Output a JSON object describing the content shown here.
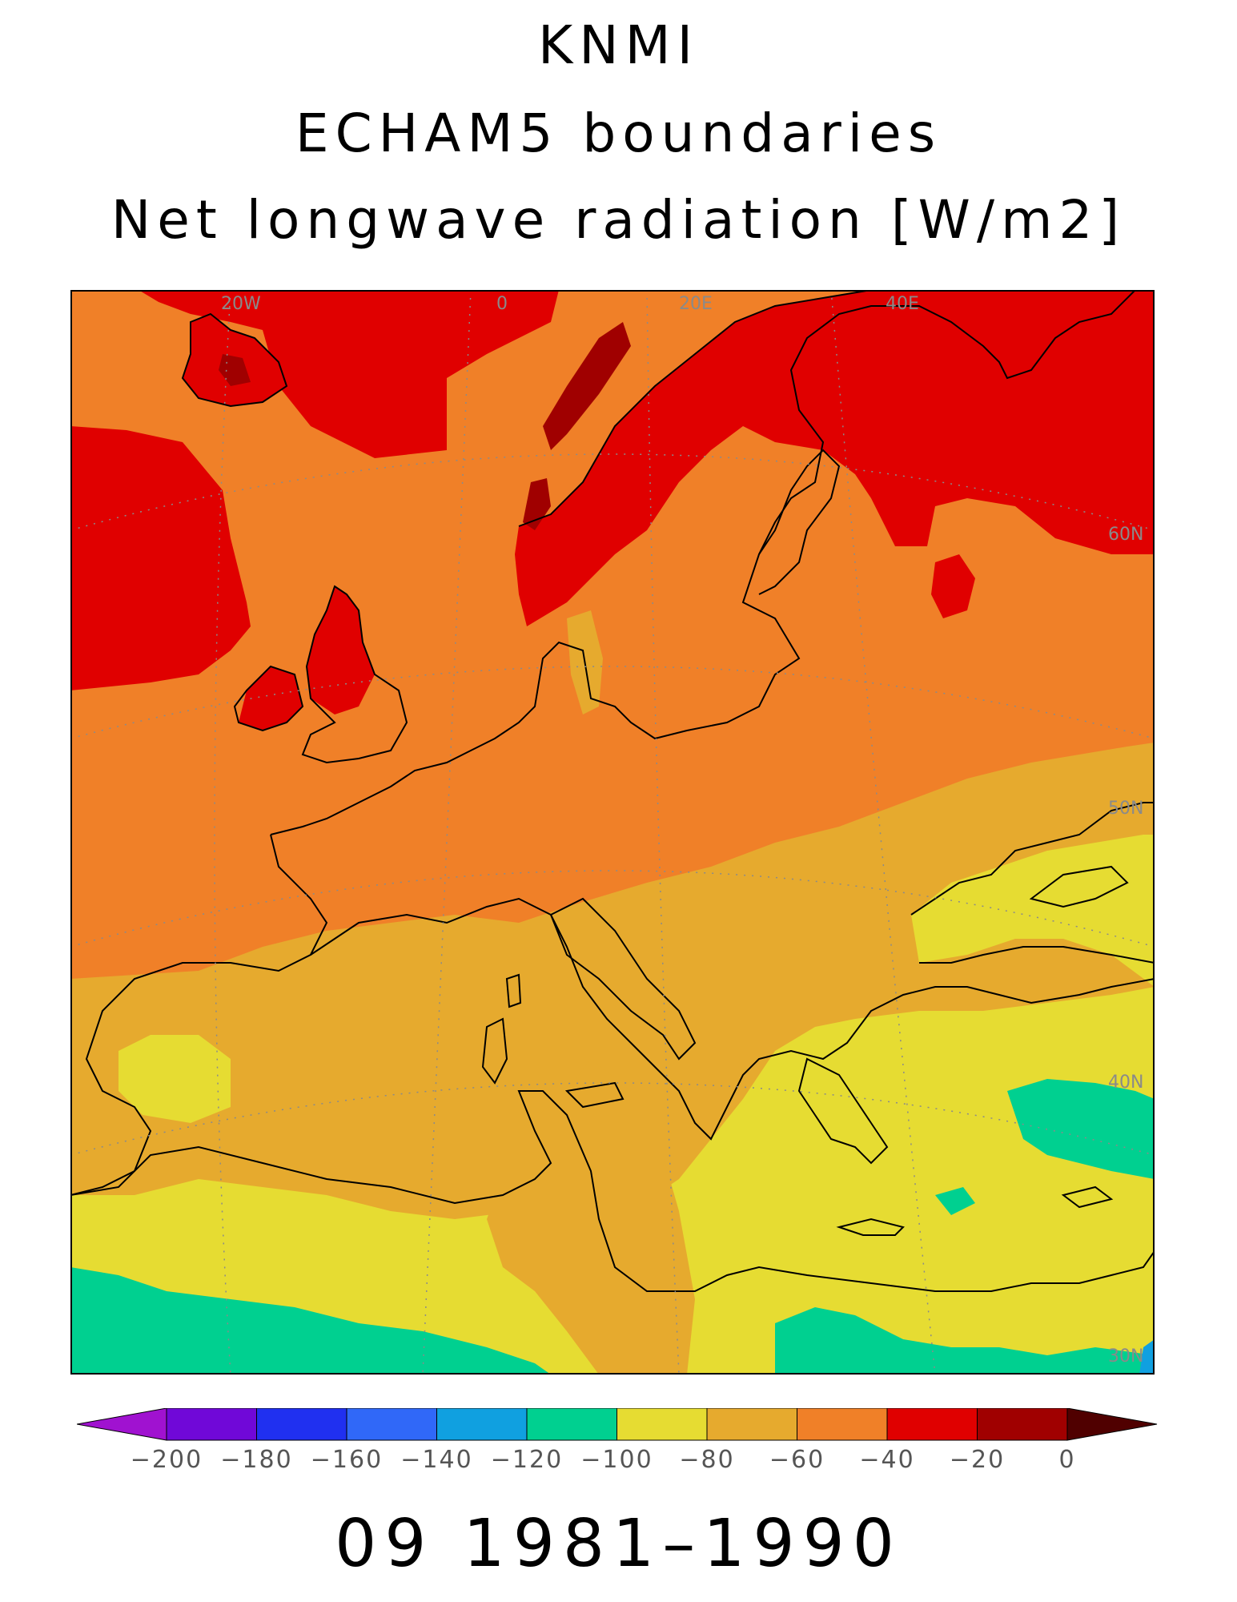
{
  "titles": {
    "line1": "KNMI",
    "line2": "ECHAM5 boundaries",
    "line3": "Net longwave radiation [W/m2]"
  },
  "footer": "09 1981–1990",
  "grid_labels": {
    "lon": [
      "20W",
      "0",
      "20E",
      "40E"
    ],
    "lat": [
      "60N",
      "50N",
      "40N",
      "30N"
    ]
  },
  "colorbar": {
    "boundaries": [
      "−200",
      "−180",
      "−160",
      "−140",
      "−120",
      "−100",
      "−80",
      "−60",
      "−40",
      "−20",
      "0"
    ],
    "colors": [
      "#a012d0",
      "#7008d8",
      "#2030f0",
      "#3068f8",
      "#10a0e0",
      "#00d090",
      "#e6dc32",
      "#e6aa2e",
      "#f08028",
      "#e00000",
      "#a00000",
      "#500000"
    ]
  },
  "field_colors": {
    "red": "#e00000",
    "dark_red": "#a00000",
    "orange": "#f08028",
    "light_orange": "#e6aa2e",
    "yellow": "#e6dc32",
    "green": "#00d090",
    "blue": "#10a0e0"
  }
}
